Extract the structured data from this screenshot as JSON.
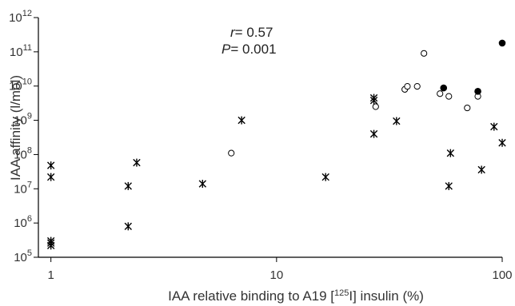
{
  "chart_data": {
    "type": "scatter",
    "title": "",
    "xlabel_parts": [
      "IAA relative binding to A19 [",
      "125",
      "I] insulin (%)"
    ],
    "ylabel": "IAA affinity (l/mol)",
    "xscale": "log",
    "yscale": "log",
    "xlim": [
      0.88,
      100
    ],
    "ylim": [
      100000,
      1000000000000
    ],
    "x_ticks": [
      {
        "value": 1,
        "label": "1"
      },
      {
        "value": 10,
        "label": "10"
      },
      {
        "value": 100,
        "label": "100"
      }
    ],
    "y_ticks": [
      {
        "value": 100000,
        "base": "10",
        "exp": "5"
      },
      {
        "value": 1000000,
        "base": "10",
        "exp": "6"
      },
      {
        "value": 10000000,
        "base": "10",
        "exp": "7"
      },
      {
        "value": 100000000,
        "base": "10",
        "exp": "8"
      },
      {
        "value": 1000000000,
        "base": "10",
        "exp": "9"
      },
      {
        "value": 10000000000,
        "base": "10",
        "exp": "10"
      },
      {
        "value": 100000000000,
        "base": "10",
        "exp": "11"
      },
      {
        "value": 1000000000000,
        "base": "10",
        "exp": "12"
      }
    ],
    "annotations": {
      "r_symbol": "r",
      "r_value": "= 0.57",
      "p_symbol": "P",
      "p_value": "= 0.001"
    },
    "grid": false,
    "series": [
      {
        "marker": "star",
        "points": [
          [
            1.0,
            48000000
          ],
          [
            1.0,
            22000000
          ],
          [
            1.0,
            300000
          ],
          [
            1.0,
            260000
          ],
          [
            1.0,
            220000
          ],
          [
            2.2,
            12000000
          ],
          [
            2.2,
            800000
          ],
          [
            2.4,
            58000000
          ],
          [
            4.7,
            14000000
          ],
          [
            7.0,
            1000000000
          ],
          [
            16.5,
            22000000
          ],
          [
            27,
            4500000000
          ],
          [
            27,
            3800000000
          ],
          [
            27,
            400000000
          ],
          [
            34,
            950000000
          ],
          [
            58,
            12000000
          ],
          [
            59,
            110000000
          ],
          [
            81,
            36000000
          ],
          [
            92,
            650000000
          ],
          [
            100,
            220000000
          ]
        ]
      },
      {
        "marker": "open-circle",
        "points": [
          [
            6.3,
            110000000
          ],
          [
            27.5,
            2500000000
          ],
          [
            37,
            8000000000
          ],
          [
            38,
            9800000000
          ],
          [
            42,
            9800000000
          ],
          [
            45,
            90000000000
          ],
          [
            53,
            6000000000
          ],
          [
            58,
            5000000000
          ],
          [
            70,
            2300000000
          ],
          [
            78,
            5000000000
          ]
        ]
      },
      {
        "marker": "filled-circle",
        "points": [
          [
            55,
            8800000000
          ],
          [
            78,
            7000000000
          ],
          [
            100,
            180000000000
          ]
        ]
      }
    ]
  }
}
